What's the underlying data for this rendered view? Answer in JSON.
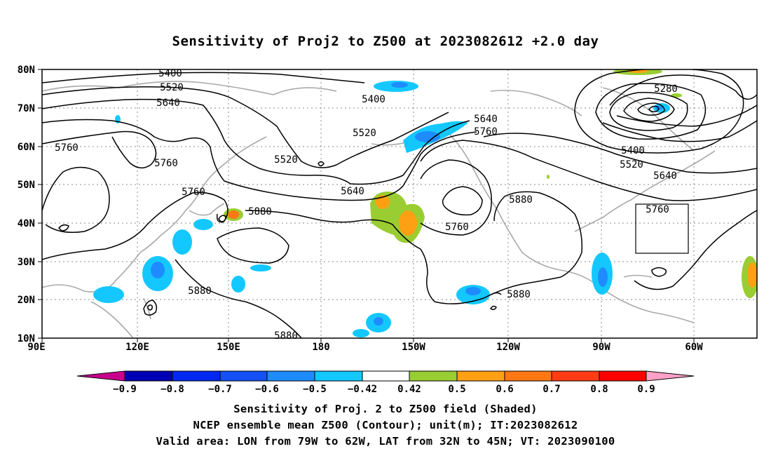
{
  "title": "Sensitivity of Proj2 to Z500 at 2023082612 +2.0 day",
  "map": {
    "lat_labels": [
      "80N",
      "70N",
      "60N",
      "50N",
      "40N",
      "30N",
      "20N",
      "10N"
    ],
    "lon_labels": [
      "90E",
      "120E",
      "150E",
      "180",
      "150W",
      "120W",
      "90W",
      "60W"
    ],
    "contour_labels": [
      "5400",
      "5520",
      "5640",
      "5760",
      "5400",
      "5520",
      "5640",
      "5760",
      "5760",
      "5880",
      "5520",
      "5640",
      "5760",
      "5880",
      "5880",
      "5880",
      "5280",
      "5400",
      "5520",
      "5640",
      "5760",
      "5880"
    ],
    "valid_box": {
      "lon_from": "79W",
      "lon_to": "62W",
      "lat_from": "32N",
      "lat_to": "45N"
    }
  },
  "colorbar": {
    "labels": [
      "−0.9",
      "−0.8",
      "−0.7",
      "−0.6",
      "−0.5",
      "−0.42",
      "0.42",
      "0.5",
      "0.6",
      "0.7",
      "0.8",
      "0.9"
    ],
    "colors": [
      "#c8008c",
      "#0000b4",
      "#0028f0",
      "#1450f5",
      "#1e8cff",
      "#14c8ff",
      "#ffffff",
      "#9acd32",
      "#ffa014",
      "#ff7814",
      "#ff3c14",
      "#ff0000",
      "#ffa0c8"
    ]
  },
  "caption": {
    "line1": "Sensitivity of Proj. 2 to Z500 field (Shaded)",
    "line2": "NCEP ensemble mean Z500 (Contour); unit(m); IT:2023082612",
    "line3": "Valid area: LON from 79W to 62W, LAT from 32N to 45N; VT: 2023090100"
  }
}
